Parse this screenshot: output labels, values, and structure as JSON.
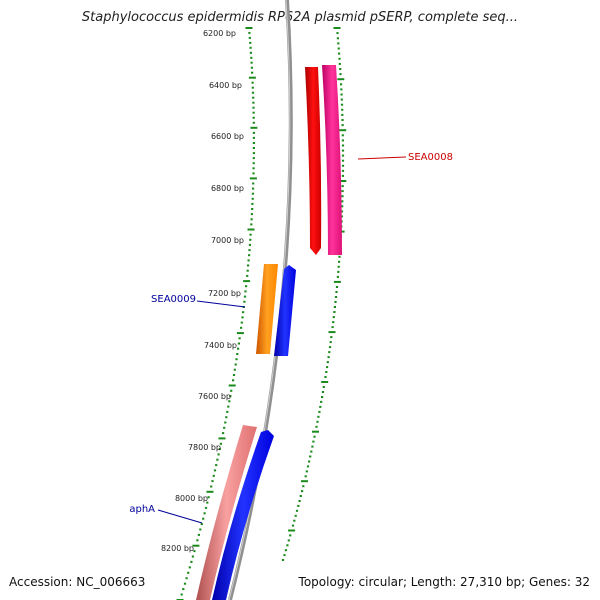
{
  "title": "Staphylococcus epidermidis RP62A plasmid pSERP, complete seq...",
  "footer": {
    "accession": "Accession: NC_006663",
    "summary": "Topology: circular; Length: 27,310 bp; Genes: 32"
  },
  "ruler": {
    "labels": [
      "6200 bp",
      "6400 bp",
      "6600 bp",
      "6800 bp",
      "7000 bp",
      "7200 bp",
      "7400 bp",
      "7600 bp",
      "7800 bp",
      "8000 bp",
      "8200 bp"
    ]
  },
  "genes": [
    {
      "name": "SEA0008",
      "color": "#cc0000"
    },
    {
      "name": "SEA0009",
      "color": "#000099"
    },
    {
      "name": "aphA",
      "color": "#000099"
    }
  ],
  "colors": {
    "backbone": "#888888",
    "ticks": "#1a8a1a",
    "red": "#ff0000",
    "pink": "#ee1188",
    "orange": "#ff8800",
    "blue": "#0000ee",
    "salmon": "#f08080"
  }
}
